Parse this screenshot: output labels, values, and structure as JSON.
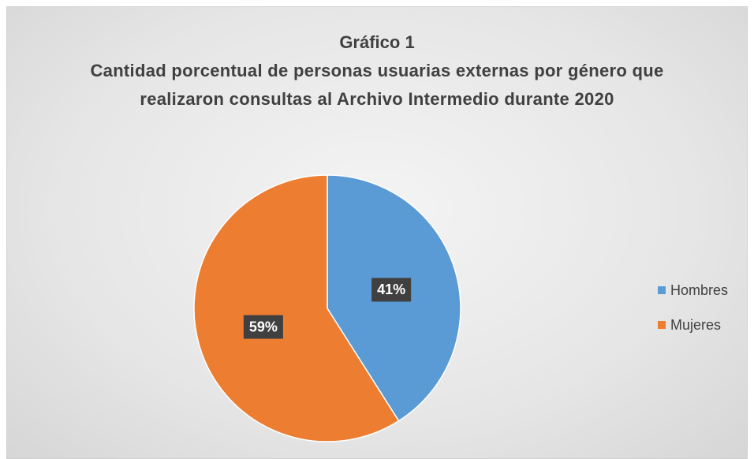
{
  "chart_data": {
    "type": "pie",
    "title": "Gráfico 1",
    "subtitle": "Cantidad porcentual de personas usuarias externas por género que realizaron consultas al Archivo Intermedio durante 2020",
    "categories": [
      "Hombres",
      "Mujeres"
    ],
    "values": [
      41,
      59
    ],
    "value_labels": [
      "41%",
      "59%"
    ],
    "colors": [
      "#5b9bd5",
      "#ed7d31"
    ],
    "legend": "right"
  }
}
